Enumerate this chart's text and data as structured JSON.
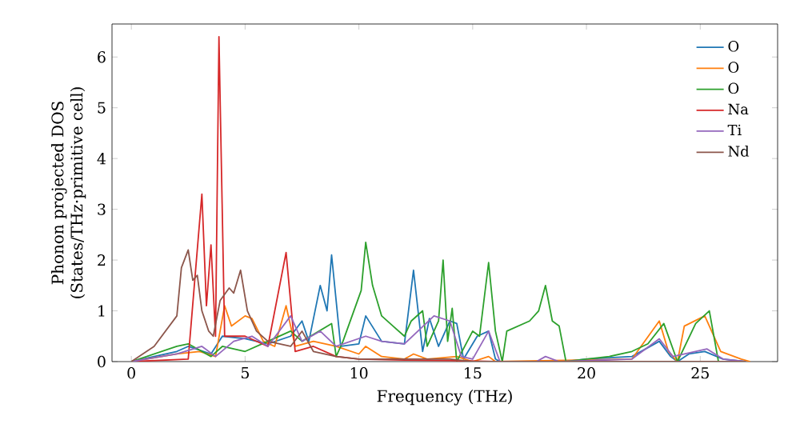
{
  "chart_data": {
    "type": "line",
    "xlabel": "Frequency (THz)",
    "ylabel": "Phonon projected DOS\n(States/THz·primitive cell)",
    "xlim": [
      -0.85,
      28.4
    ],
    "ylim": [
      0,
      6.65
    ],
    "xticks": [
      0,
      5,
      10,
      15,
      20,
      25
    ],
    "yticks": [
      0,
      1,
      2,
      3,
      4,
      5,
      6
    ],
    "legend": "top right",
    "grid": false,
    "marker": "none",
    "line_style": "solid",
    "series": [
      {
        "name": "O",
        "color": "#1f77b4",
        "x": [
          0,
          2,
          2.5,
          3.5,
          4.0,
          5,
          6,
          7,
          7.5,
          7.8,
          8.3,
          8.6,
          8.8,
          9.2,
          10,
          10.3,
          11,
          12,
          12.4,
          12.8,
          13.1,
          13.5,
          14,
          14.3,
          14.6,
          15.2,
          15.7,
          16.0,
          16.2,
          19,
          20,
          22,
          23.2,
          23.7,
          24,
          24.5,
          25.2,
          26,
          27
        ],
        "values": [
          0,
          0.2,
          0.3,
          0.15,
          0.5,
          0.45,
          0.35,
          0.5,
          0.8,
          0.4,
          1.5,
          1.0,
          2.1,
          0.3,
          0.35,
          0.9,
          0.4,
          0.35,
          1.8,
          0.2,
          0.85,
          0.3,
          0.8,
          0.75,
          0.05,
          0.5,
          0.6,
          0.05,
          0,
          0,
          0.05,
          0.1,
          0.4,
          0.1,
          0,
          0.15,
          0.2,
          0.05,
          0
        ]
      },
      {
        "name": "O",
        "color": "#ff7f0e",
        "x": [
          0,
          2,
          3,
          3.7,
          4.1,
          4.4,
          5.0,
          5.3,
          5.8,
          6.3,
          6.8,
          7.2,
          8,
          9,
          10,
          10.3,
          11,
          12,
          12.4,
          13,
          14.3,
          15,
          15.7,
          16,
          22,
          23.2,
          23.6,
          24.0,
          24.3,
          25.2,
          25.9,
          26.8,
          27.2
        ],
        "values": [
          0,
          0.15,
          0.2,
          0.1,
          1.1,
          0.7,
          0.9,
          0.85,
          0.4,
          0.3,
          1.1,
          0.3,
          0.4,
          0.3,
          0.15,
          0.3,
          0.1,
          0.05,
          0.15,
          0.05,
          0.1,
          0,
          0.1,
          0,
          0.05,
          0.8,
          0.2,
          0,
          0.7,
          0.9,
          0.2,
          0.05,
          0
        ]
      },
      {
        "name": "O",
        "color": "#2ca02c",
        "x": [
          0,
          2,
          2.5,
          3.5,
          4,
          5,
          6,
          7,
          7.5,
          8.8,
          9.0,
          9.3,
          10.1,
          10.3,
          10.6,
          11,
          11.5,
          12,
          12.3,
          12.8,
          13.0,
          13.5,
          13.7,
          13.9,
          14.1,
          14.3,
          15,
          15.3,
          15.7,
          16.0,
          16.3,
          16.5,
          17.5,
          17.9,
          18.2,
          18.5,
          18.8,
          19.1,
          20,
          21,
          22,
          22.7,
          23.4,
          24.0,
          24.8,
          25.4,
          25.8,
          27
        ],
        "values": [
          0,
          0.3,
          0.35,
          0.1,
          0.3,
          0.2,
          0.4,
          0.6,
          0.4,
          0.75,
          0.1,
          0.4,
          1.4,
          2.35,
          1.5,
          0.9,
          0.7,
          0.5,
          0.8,
          1.0,
          0.3,
          0.8,
          2.0,
          0.4,
          1.05,
          0,
          0.6,
          0.5,
          1.95,
          0.6,
          0,
          0.6,
          0.8,
          1.0,
          1.5,
          0.8,
          0.7,
          0,
          0.05,
          0.1,
          0.2,
          0.35,
          0.75,
          0,
          0.75,
          1.0,
          0,
          0
        ]
      },
      {
        "name": "Na",
        "color": "#d62728",
        "x": [
          0,
          2.5,
          3.1,
          3.3,
          3.5,
          3.7,
          3.85,
          4.1,
          5,
          6,
          6.8,
          7.2,
          8,
          9,
          10,
          12,
          14,
          16,
          27
        ],
        "values": [
          0,
          0.05,
          3.3,
          1.1,
          2.3,
          0.5,
          6.4,
          0.5,
          0.5,
          0.3,
          2.15,
          0.2,
          0.3,
          0.1,
          0.05,
          0.03,
          0.02,
          0,
          0
        ]
      },
      {
        "name": "Ti",
        "color": "#9467bd",
        "x": [
          0,
          2,
          3.1,
          3.7,
          4.5,
          5.3,
          6,
          7.0,
          7.5,
          8.3,
          9,
          10.3,
          11,
          12,
          13.3,
          14,
          14.5,
          15,
          15.7,
          16.2,
          17.8,
          18.2,
          18.8,
          22,
          23.2,
          23.8,
          25.3,
          26,
          27
        ],
        "values": [
          0,
          0.15,
          0.3,
          0.1,
          0.4,
          0.5,
          0.3,
          0.9,
          0.4,
          0.6,
          0.3,
          0.5,
          0.4,
          0.35,
          0.9,
          0.8,
          0.1,
          0.05,
          0.6,
          0,
          0,
          0.1,
          0,
          0.05,
          0.45,
          0.1,
          0.25,
          0.05,
          0
        ]
      },
      {
        "name": "Nd",
        "color": "#8c564b",
        "x": [
          0,
          1,
          2,
          2.2,
          2.5,
          2.7,
          2.9,
          3.1,
          3.4,
          3.6,
          3.9,
          4.3,
          4.5,
          4.8,
          5.1,
          5.5,
          6,
          7,
          7.5,
          8,
          9,
          10,
          14,
          15,
          27
        ],
        "values": [
          0,
          0.3,
          0.9,
          1.85,
          2.2,
          1.6,
          1.7,
          1.0,
          0.6,
          0.5,
          1.2,
          1.45,
          1.35,
          1.8,
          1.0,
          0.6,
          0.4,
          0.3,
          0.6,
          0.2,
          0.1,
          0.05,
          0.05,
          0,
          0
        ]
      }
    ]
  }
}
